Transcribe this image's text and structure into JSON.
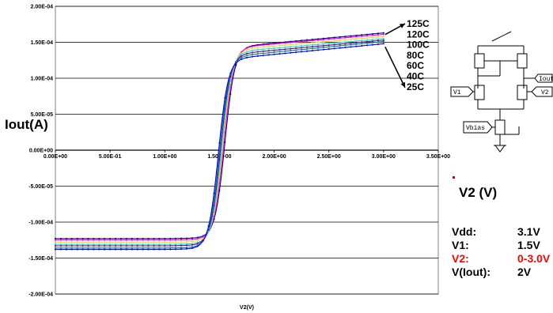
{
  "chart_data": {
    "type": "line",
    "title": "",
    "xlabel": "V2(V)",
    "ylabel": "Iout(A)",
    "xlim": [
      0,
      3.5
    ],
    "ylim": [
      -0.0002,
      0.0002
    ],
    "x_ticks": [
      "0.00E+00",
      "5.00E-01",
      "1.00E+00",
      "1.50E+00",
      "2.00E+00",
      "2.50E+00",
      "3.00E+00",
      "3.50E+00"
    ],
    "y_ticks": [
      "2.00E-04",
      "1.50E-04",
      "1.00E-04",
      "5.00E-05",
      "0.00E+00",
      "-5.00E-05",
      "-1.00E-04",
      "-1.50E-04",
      "-2.00E-04"
    ],
    "grid": "horizontal",
    "series": [
      {
        "name": "125C",
        "color": "#000080",
        "low": -0.000123,
        "high": 0.000163,
        "shoulder": 0.000144,
        "vmid": 1.55
      },
      {
        "name": "120C",
        "color": "#ff00ff",
        "low": -0.000125,
        "high": 0.000161,
        "shoulder": 0.000143,
        "vmid": 1.54
      },
      {
        "name": "100C",
        "color": "#ffd700",
        "low": -0.000128,
        "high": 0.000158,
        "shoulder": 0.00014,
        "vmid": 1.53
      },
      {
        "name": "80C",
        "color": "#00e5ee",
        "low": -0.000131,
        "high": 0.000155,
        "shoulder": 0.000137,
        "vmid": 1.52
      },
      {
        "name": "60C",
        "color": "#800080",
        "low": -0.000133,
        "high": 0.000153,
        "shoulder": 0.000134,
        "vmid": 1.51
      },
      {
        "name": "40C",
        "color": "#008080",
        "low": -0.000136,
        "high": 0.000151,
        "shoulder": 0.000131,
        "vmid": 1.5
      },
      {
        "name": "25C",
        "color": "#0000ff",
        "low": -0.000138,
        "high": 0.000148,
        "shoulder": 0.000128,
        "vmid": 1.49
      }
    ]
  },
  "side": {
    "v2_unit": "V2 (V)"
  },
  "params": [
    {
      "key": "Vdd:",
      "value": "3.1V",
      "highlight": false
    },
    {
      "key": "V1:",
      "value": "1.5V",
      "highlight": false
    },
    {
      "key": "V2:",
      "value": "0-3.0V",
      "highlight": true
    },
    {
      "key": "V(Iout):",
      "value": "2V",
      "highlight": false
    }
  ],
  "schematic": {
    "labels": [
      "V1",
      "V2",
      "Iout",
      "Vbias"
    ]
  }
}
